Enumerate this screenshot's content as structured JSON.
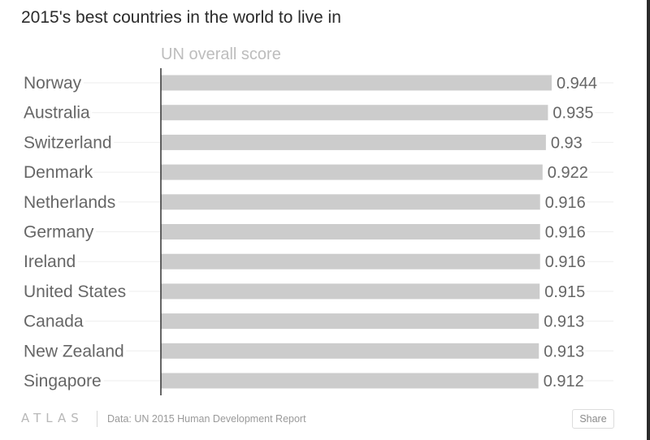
{
  "title": "2015's best countries in the world to live in",
  "footer": {
    "logo": "ATLAS",
    "source": "Data: UN 2015 Human Development Report",
    "share_label": "Share"
  },
  "colors": {
    "bar": "#cccccc",
    "label": "#666666",
    "value": "#666666",
    "legend": "#bdbdbd",
    "axis": "#333333",
    "guide": "#eeeeee"
  },
  "chart_data": {
    "type": "bar",
    "orientation": "horizontal",
    "series": [
      {
        "name": "UN overall score",
        "values": [
          0.944,
          0.935,
          0.93,
          0.922,
          0.916,
          0.916,
          0.916,
          0.915,
          0.913,
          0.913,
          0.912
        ]
      }
    ],
    "categories": [
      "Norway",
      "Australia",
      "Switzerland",
      "Denmark",
      "Netherlands",
      "Germany",
      "Ireland",
      "United States",
      "Canada",
      "New Zealand",
      "Singapore"
    ],
    "value_labels": [
      "0.944",
      "0.935",
      "0.93",
      "0.922",
      "0.916",
      "0.916",
      "0.916",
      "0.915",
      "0.913",
      "0.913",
      "0.912"
    ],
    "xlim": [
      0,
      0.944
    ],
    "legend": "top",
    "grid": false
  }
}
